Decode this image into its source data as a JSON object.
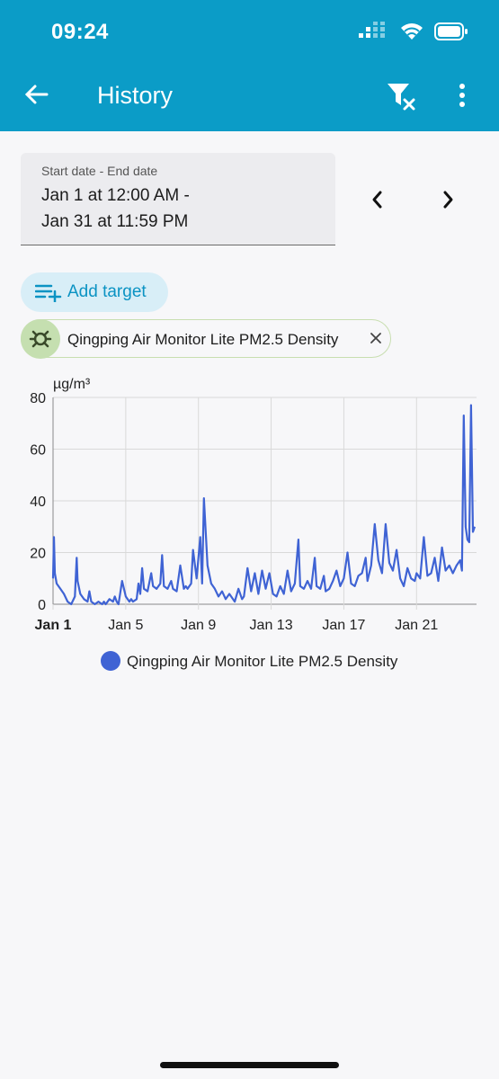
{
  "status_bar": {
    "time": "09:24"
  },
  "app_bar": {
    "title": "History",
    "back_icon": "arrow-left-icon",
    "filter_icon": "filter-clear-icon",
    "menu_icon": "more-vert-icon",
    "background": "#0b9cc7"
  },
  "date_range": {
    "label": "Start date - End date",
    "start": "Jan 1 at 12:00 AM -",
    "end": "Jan 31 at 11:59 PM"
  },
  "add_target": {
    "label": "Add target",
    "color": "#0b93c3"
  },
  "target_chip": {
    "label": "Qingping Air Monitor Lite PM2.5 Density",
    "icon": "sensor-icon"
  },
  "chart_data": {
    "type": "line",
    "ylabel": "µg/m³",
    "ylim": [
      0,
      80
    ],
    "yticks": [
      "0",
      "20",
      "40",
      "60",
      "80"
    ],
    "xlim": [
      1,
      24.3
    ],
    "xticks": [
      {
        "value": 1,
        "label": "Jan 1",
        "bold": true
      },
      {
        "value": 5,
        "label": "Jan 5"
      },
      {
        "value": 9,
        "label": "Jan 9"
      },
      {
        "value": 13,
        "label": "Jan 13"
      },
      {
        "value": 17,
        "label": "Jan 17"
      },
      {
        "value": 21,
        "label": "Jan 21"
      }
    ],
    "grid": true,
    "legend": "bottom",
    "series": [
      {
        "name": "Qingping Air Monitor Lite PM2.5 Density",
        "color": "#3f63d4",
        "x": [
          1.0,
          1.05,
          1.1,
          1.2,
          1.4,
          1.6,
          1.8,
          2.0,
          2.2,
          2.3,
          2.35,
          2.5,
          2.7,
          2.9,
          3.0,
          3.1,
          3.3,
          3.5,
          3.7,
          3.8,
          3.9,
          4.1,
          4.3,
          4.4,
          4.5,
          4.6,
          4.8,
          5.0,
          5.2,
          5.3,
          5.4,
          5.6,
          5.7,
          5.8,
          5.9,
          6.0,
          6.2,
          6.4,
          6.5,
          6.7,
          6.9,
          7.0,
          7.1,
          7.3,
          7.5,
          7.6,
          7.8,
          8.0,
          8.2,
          8.3,
          8.4,
          8.6,
          8.7,
          8.9,
          9.1,
          9.2,
          9.3,
          9.5,
          9.7,
          9.9,
          10.1,
          10.3,
          10.5,
          10.7,
          11.0,
          11.2,
          11.4,
          11.5,
          11.7,
          11.9,
          12.1,
          12.3,
          12.5,
          12.7,
          12.9,
          13.1,
          13.3,
          13.5,
          13.7,
          13.9,
          14.1,
          14.3,
          14.5,
          14.6,
          14.8,
          15.0,
          15.2,
          15.4,
          15.5,
          15.7,
          15.9,
          16.0,
          16.2,
          16.4,
          16.6,
          16.8,
          17.0,
          17.2,
          17.4,
          17.6,
          17.8,
          18.0,
          18.2,
          18.3,
          18.5,
          18.7,
          18.9,
          19.1,
          19.3,
          19.5,
          19.7,
          19.9,
          20.1,
          20.3,
          20.5,
          20.7,
          20.9,
          21.0,
          21.2,
          21.4,
          21.6,
          21.8,
          22.0,
          22.2,
          22.4,
          22.6,
          22.8,
          23.0,
          23.2,
          23.4,
          23.5,
          23.6,
          23.7,
          23.8,
          23.9,
          24.0,
          24.1,
          24.2
        ],
        "y": [
          10,
          26,
          12,
          8,
          6,
          4,
          1,
          0,
          3,
          18,
          9,
          4,
          2,
          1,
          5,
          1,
          0,
          1,
          0,
          1,
          0,
          2,
          1,
          3,
          1,
          0,
          9,
          3,
          1,
          2,
          1,
          2,
          8,
          4,
          14,
          6,
          5,
          12,
          7,
          6,
          8,
          19,
          7,
          6,
          9,
          6,
          5,
          15,
          6,
          7,
          6,
          8,
          21,
          10,
          26,
          8,
          41,
          15,
          8,
          6,
          3,
          5,
          2,
          4,
          1,
          6,
          2,
          3,
          14,
          5,
          12,
          4,
          13,
          6,
          12,
          4,
          3,
          7,
          4,
          13,
          5,
          8,
          25,
          7,
          6,
          9,
          6,
          18,
          7,
          6,
          11,
          5,
          6,
          9,
          13,
          7,
          10,
          20,
          8,
          7,
          11,
          12,
          18,
          9,
          15,
          31,
          17,
          12,
          31,
          16,
          13,
          21,
          10,
          7,
          14,
          10,
          9,
          12,
          10,
          26,
          11,
          12,
          18,
          9,
          22,
          13,
          15,
          12,
          15,
          17,
          13,
          73,
          30,
          25,
          24,
          77,
          28,
          30
        ]
      }
    ]
  }
}
